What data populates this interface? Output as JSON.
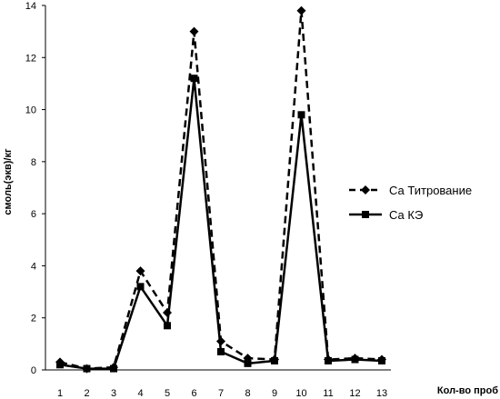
{
  "chart_data": {
    "type": "line",
    "title": "",
    "xlabel": "Кол-во проб",
    "ylabel": "смоль(экв)/кг",
    "ylim": [
      0,
      14
    ],
    "yticks": [
      0,
      2,
      4,
      6,
      8,
      10,
      12,
      14
    ],
    "categories": [
      "1",
      "2",
      "3",
      "4",
      "5",
      "6",
      "7",
      "8",
      "9",
      "10",
      "11",
      "12",
      "13"
    ],
    "grid": false,
    "legend_position": "right",
    "series": [
      {
        "name": "Са Титрование",
        "line_style": "dashed",
        "marker": "diamond",
        "color": "#000000",
        "values": [
          0.3,
          0.05,
          0.1,
          3.8,
          2.2,
          13.0,
          1.1,
          0.45,
          0.4,
          13.8,
          0.4,
          0.45,
          0.4
        ]
      },
      {
        "name": "Са КЭ",
        "line_style": "solid",
        "marker": "square",
        "color": "#000000",
        "values": [
          0.2,
          0.05,
          0.05,
          3.2,
          1.7,
          11.2,
          0.7,
          0.25,
          0.35,
          9.8,
          0.35,
          0.4,
          0.35
        ]
      }
    ]
  }
}
